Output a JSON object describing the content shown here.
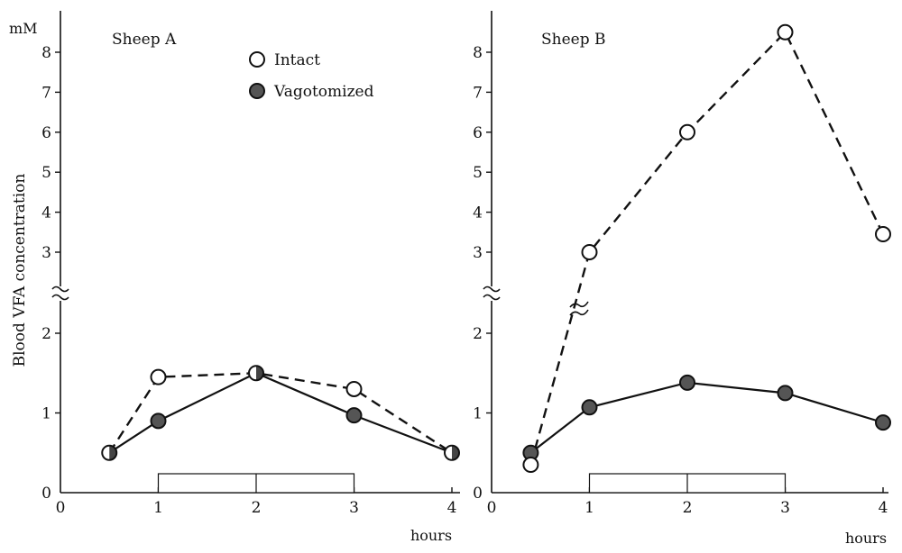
{
  "chart_data": [
    {
      "type": "line",
      "title": "Sheep A",
      "ylabel": "Blood VFA concentration",
      "yunit": "mM",
      "xlabel": "hours",
      "x_ticks": [
        "0",
        "1",
        "2",
        "3",
        "4"
      ],
      "y_ticks": [
        "1",
        "2",
        "3",
        "4",
        "5",
        "6",
        "7",
        "8"
      ],
      "legend": [
        {
          "label": "Intact",
          "marker": "open-circle",
          "style": "dashed"
        },
        {
          "label": "Vagotomized",
          "marker": "filled-circle",
          "style": "solid"
        }
      ],
      "series": [
        {
          "name": "Intact",
          "x": [
            0.5,
            1,
            2,
            3,
            4
          ],
          "y": [
            0.5,
            1.45,
            1.5,
            1.3,
            0.5
          ]
        },
        {
          "name": "Vagotomized",
          "x": [
            0.5,
            1,
            2,
            3,
            4
          ],
          "y": [
            0.5,
            0.9,
            1.5,
            0.97,
            0.5
          ]
        }
      ],
      "treatment_bar": {
        "from": 1,
        "to": 3
      },
      "axis_break": "between 2 and 3",
      "grid": false
    },
    {
      "type": "line",
      "title": "Sheep B",
      "xlabel": "hours",
      "x_ticks": [
        "0",
        "1",
        "2",
        "3",
        "4"
      ],
      "y_ticks": [
        "1",
        "2",
        "3",
        "4",
        "5",
        "6",
        "7",
        "8"
      ],
      "series": [
        {
          "name": "Intact",
          "x": [
            0.4,
            1,
            2,
            3,
            4
          ],
          "y": [
            0.35,
            3.0,
            6.0,
            8.5,
            3.45
          ]
        },
        {
          "name": "Vagotomized",
          "x": [
            0.4,
            1,
            2,
            3,
            4
          ],
          "y": [
            0.5,
            1.07,
            1.38,
            1.25,
            0.88
          ]
        }
      ],
      "treatment_bar": {
        "from": 1,
        "to": 3
      },
      "axis_break": "between 2 and 3",
      "grid": false
    }
  ]
}
